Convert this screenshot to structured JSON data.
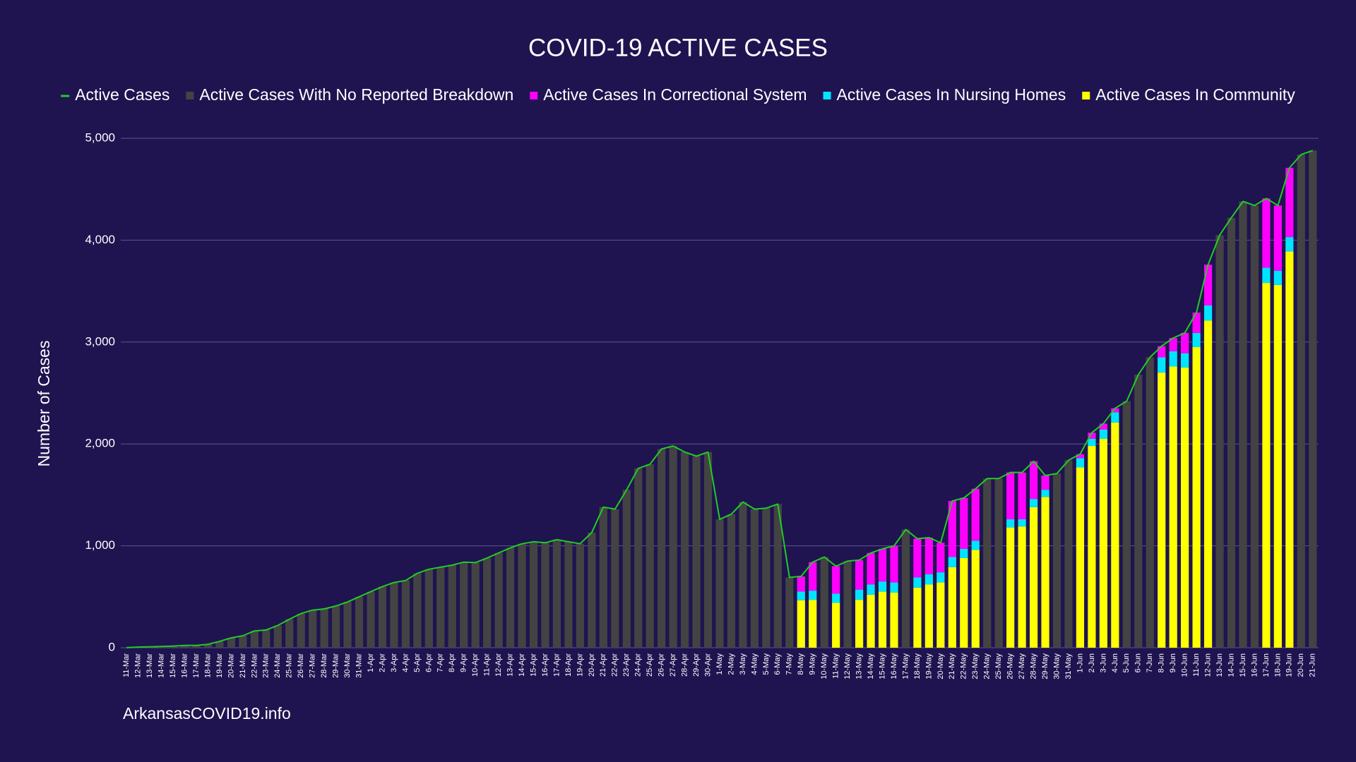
{
  "chart_data": {
    "type": "bar",
    "stacked": true,
    "title": "COVID-19 ACTIVE CASES",
    "y_label": "Number of Cases",
    "footer": "ArkansasCOVID19.info",
    "background": "#1f1450",
    "grid": true,
    "legend": "top",
    "ylim": [
      0,
      5000
    ],
    "yticks": [
      0,
      {
        "value": 1000,
        "label": "1,000"
      },
      {
        "value": 2000,
        "label": "2,000"
      },
      {
        "value": 3000,
        "label": "3,000"
      },
      {
        "value": 4000,
        "label": "4,000"
      },
      {
        "value": 5000,
        "label": "5,000"
      }
    ],
    "categories": [
      "11-Mar",
      "12-Mar",
      "13-Mar",
      "14-Mar",
      "15-Mar",
      "16-Mar",
      "17-Mar",
      "18-Mar",
      "19-Mar",
      "20-Mar",
      "21-Mar",
      "22-Mar",
      "23-Mar",
      "24-Mar",
      "25-Mar",
      "26-Mar",
      "27-Mar",
      "28-Mar",
      "29-Mar",
      "30-Mar",
      "31-Mar",
      "1-Apr",
      "2-Apr",
      "3-Apr",
      "4-Apr",
      "5-Apr",
      "6-Apr",
      "7-Apr",
      "8-Apr",
      "9-Apr",
      "10-Apr",
      "11-Apr",
      "12-Apr",
      "13-Apr",
      "14-Apr",
      "15-Apr",
      "16-Apr",
      "17-Apr",
      "18-Apr",
      "19-Apr",
      "20-Apr",
      "21-Apr",
      "22-Apr",
      "23-Apr",
      "24-Apr",
      "25-Apr",
      "26-Apr",
      "27-Apr",
      "28-Apr",
      "29-Apr",
      "30-Apr",
      "1-May",
      "2-May",
      "3-May",
      "4-May",
      "5-May",
      "6-May",
      "7-May",
      "8-May",
      "9-May",
      "10-May",
      "11-May",
      "12-May",
      "13-May",
      "14-May",
      "15-May",
      "16-May",
      "17-May",
      "18-May",
      "19-May",
      "20-May",
      "21-May",
      "22-May",
      "23-May",
      "24-May",
      "25-May",
      "26-May",
      "27-May",
      "28-May",
      "29-May",
      "30-May",
      "31-May",
      "1-Jun",
      "2-Jun",
      "3-Jun",
      "4-Jun",
      "5-Jun",
      "6-Jun",
      "7-Jun",
      "8-Jun",
      "9-Jun",
      "10-Jun",
      "11-Jun",
      "12-Jun",
      "13-Jun",
      "14-Jun",
      "15-Jun",
      "16-Jun",
      "17-Jun",
      "18-Jun",
      "19-Jun",
      "20-Jun",
      "21-Jun"
    ],
    "series": [
      {
        "name": "Active Cases",
        "type": "line",
        "color": "#22cc22",
        "values": [
          1,
          6,
          9,
          12,
          16,
          22,
          22,
          33,
          62,
          96,
          118,
          165,
          174,
          218,
          280,
          335,
          369,
          381,
          409,
          449,
          500,
          550,
          600,
          640,
          660,
          730,
          770,
          790,
          810,
          840,
          835,
          880,
          930,
          980,
          1020,
          1040,
          1030,
          1060,
          1040,
          1020,
          1130,
          1380,
          1360,
          1550,
          1760,
          1800,
          1950,
          1980,
          1920,
          1880,
          1920,
          1260,
          1310,
          1430,
          1360,
          1370,
          1410,
          690,
          700,
          840,
          890,
          800,
          850,
          860,
          930,
          970,
          1000,
          1160,
          1070,
          1080,
          1030,
          1440,
          1470,
          1560,
          1660,
          1660,
          1720,
          1720,
          1830,
          1690,
          1710,
          1840,
          1900,
          2110,
          2200,
          2350,
          2420,
          2680,
          2850,
          2960,
          3040,
          3090,
          3290,
          3760,
          4050,
          4220,
          4380,
          4340,
          4410,
          4340,
          4710,
          4840,
          4880
        ]
      },
      {
        "name": "Active Cases With No Reported Breakdown",
        "color": "#434343",
        "values": [
          1,
          6,
          9,
          12,
          16,
          22,
          22,
          33,
          62,
          96,
          118,
          165,
          174,
          218,
          280,
          335,
          369,
          381,
          409,
          449,
          500,
          550,
          600,
          640,
          660,
          730,
          770,
          790,
          810,
          840,
          835,
          880,
          930,
          980,
          1020,
          1040,
          1030,
          1060,
          1040,
          1020,
          1130,
          1380,
          1360,
          1550,
          1760,
          1800,
          1950,
          1980,
          1920,
          1880,
          1920,
          1260,
          1310,
          1430,
          1360,
          1370,
          1410,
          690,
          null,
          null,
          890,
          null,
          850,
          null,
          null,
          null,
          null,
          1160,
          null,
          null,
          null,
          null,
          null,
          null,
          1660,
          1660,
          null,
          null,
          null,
          null,
          1710,
          1840,
          null,
          null,
          null,
          null,
          2420,
          2680,
          2850,
          null,
          null,
          null,
          null,
          null,
          4050,
          4220,
          4380,
          4340,
          null,
          null,
          null,
          4840,
          4880
        ]
      },
      {
        "name": "Active Cases In Correctional System",
        "color": "#ff00ff",
        "values": [
          null,
          null,
          null,
          null,
          null,
          null,
          null,
          null,
          null,
          null,
          null,
          null,
          null,
          null,
          null,
          null,
          null,
          null,
          null,
          null,
          null,
          null,
          null,
          null,
          null,
          null,
          null,
          null,
          null,
          null,
          null,
          null,
          null,
          null,
          null,
          null,
          null,
          null,
          null,
          null,
          null,
          null,
          null,
          null,
          null,
          null,
          null,
          null,
          null,
          null,
          null,
          null,
          null,
          null,
          null,
          null,
          null,
          null,
          149,
          280,
          null,
          270,
          null,
          290,
          310,
          320,
          360,
          null,
          380,
          360,
          290,
          550,
          500,
          510,
          null,
          null,
          460,
          460,
          370,
          140,
          null,
          null,
          40,
          60,
          60,
          40,
          null,
          null,
          null,
          110,
          130,
          200,
          200,
          400,
          null,
          null,
          null,
          null,
          680,
          640,
          680,
          null,
          null
        ]
      },
      {
        "name": "Active Cases In Nursing Homes",
        "color": "#00e5ff",
        "values": [
          null,
          null,
          null,
          null,
          null,
          null,
          null,
          null,
          null,
          null,
          null,
          null,
          null,
          null,
          null,
          null,
          null,
          null,
          null,
          null,
          null,
          null,
          null,
          null,
          null,
          null,
          null,
          null,
          null,
          null,
          null,
          null,
          null,
          null,
          null,
          null,
          null,
          null,
          null,
          null,
          null,
          null,
          null,
          null,
          null,
          null,
          null,
          null,
          null,
          null,
          null,
          null,
          null,
          null,
          null,
          null,
          null,
          null,
          85,
          90,
          null,
          90,
          null,
          100,
          100,
          100,
          100,
          null,
          100,
          100,
          100,
          100,
          90,
          90,
          null,
          null,
          80,
          70,
          80,
          70,
          null,
          null,
          90,
          70,
          90,
          100,
          null,
          null,
          null,
          150,
          150,
          140,
          140,
          150,
          null,
          null,
          null,
          null,
          150,
          140,
          140,
          null,
          null
        ]
      },
      {
        "name": "Active Cases In Community",
        "color": "#ffff00",
        "values": [
          null,
          null,
          null,
          null,
          null,
          null,
          null,
          null,
          null,
          null,
          null,
          null,
          null,
          null,
          null,
          null,
          null,
          null,
          null,
          null,
          null,
          null,
          null,
          null,
          null,
          null,
          null,
          null,
          null,
          null,
          null,
          null,
          null,
          null,
          null,
          null,
          null,
          null,
          null,
          null,
          null,
          null,
          null,
          null,
          null,
          null,
          null,
          null,
          null,
          null,
          null,
          null,
          null,
          null,
          null,
          null,
          null,
          null,
          466,
          470,
          null,
          440,
          null,
          470,
          520,
          550,
          540,
          null,
          590,
          620,
          640,
          790,
          880,
          960,
          null,
          null,
          1180,
          1190,
          1380,
          1480,
          null,
          null,
          1770,
          1980,
          2050,
          2210,
          null,
          null,
          null,
          2700,
          2760,
          2750,
          2950,
          3210,
          null,
          null,
          null,
          null,
          3580,
          3560,
          3890,
          null,
          null
        ]
      }
    ]
  }
}
